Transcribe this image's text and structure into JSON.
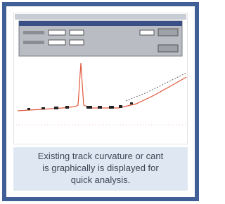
{
  "caption": {
    "lines": [
      "Existing track curvature or cant",
      "is graphically is displayed for",
      "quick analysis."
    ]
  }
}
